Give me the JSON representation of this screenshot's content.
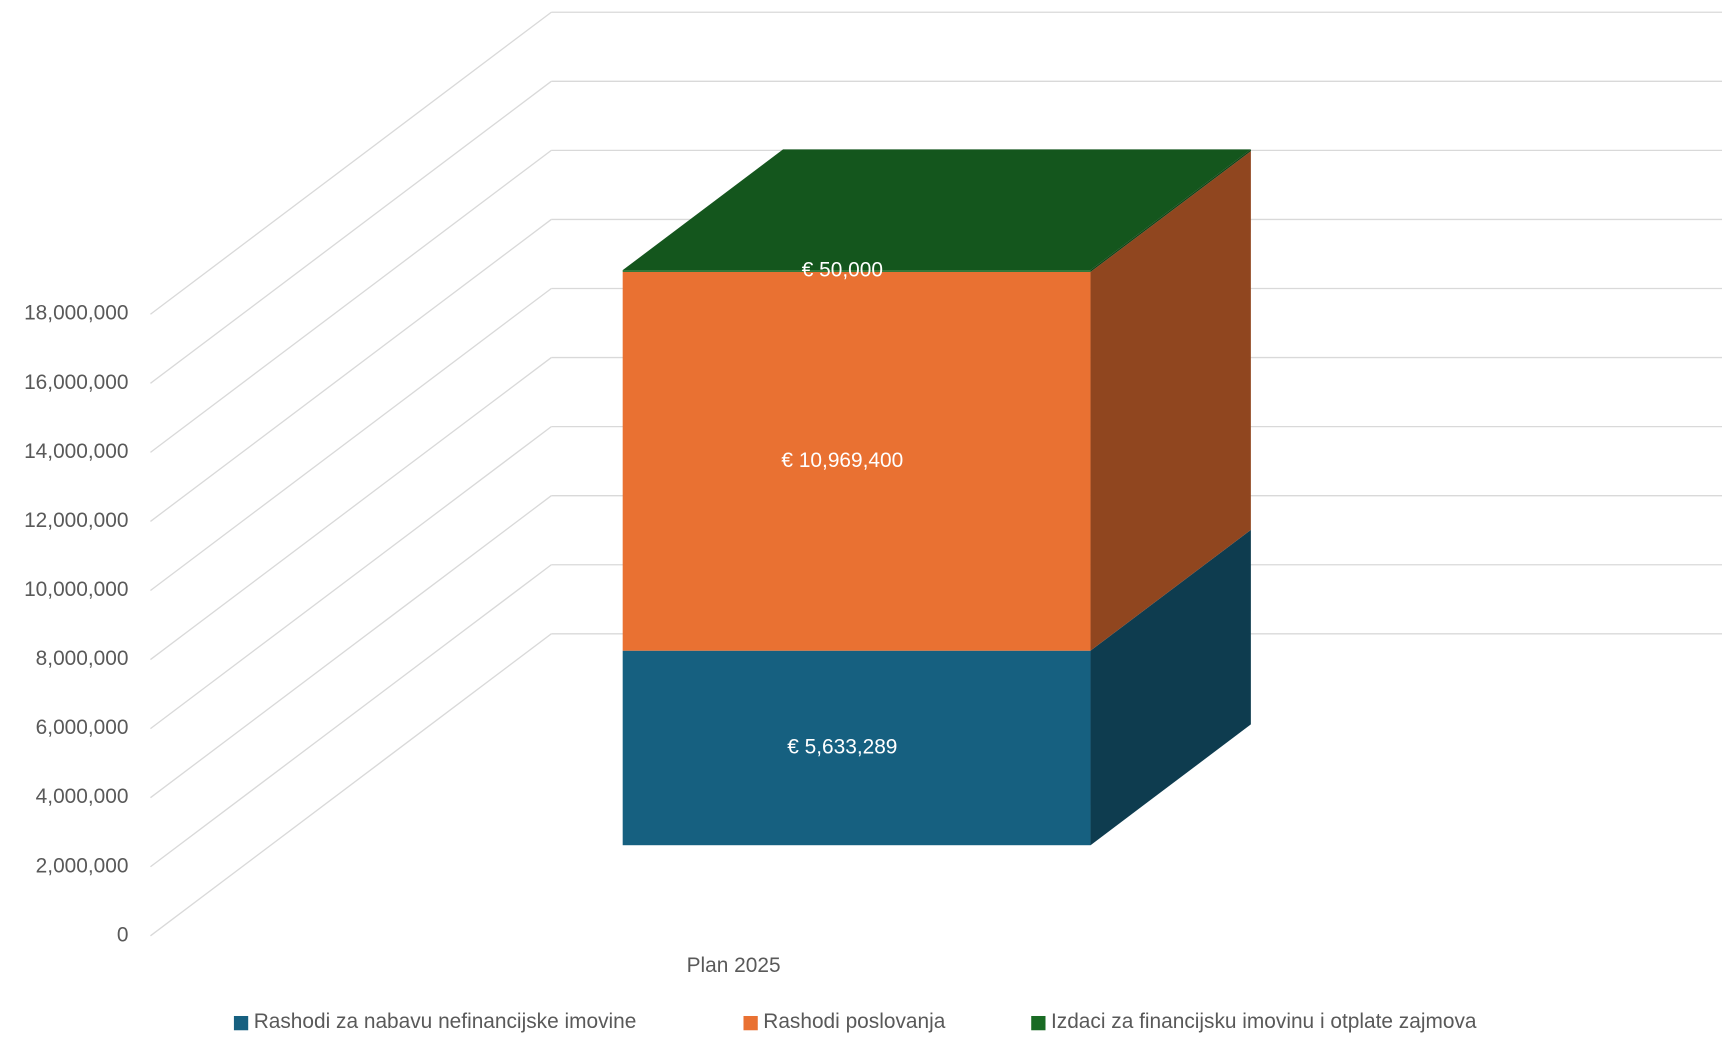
{
  "chart_data": {
    "type": "bar3d_stacked",
    "categories": [
      "Plan 2025"
    ],
    "series": [
      {
        "name": "Rashodi za nabavu nefinancijske imovine",
        "color": "#166080",
        "values": [
          5633289
        ],
        "value_labels": [
          "€ 5,633,289"
        ]
      },
      {
        "name": "Rashodi poslovanja",
        "color": "#E97132",
        "values": [
          10969400
        ],
        "value_labels": [
          "€ 10,969,400"
        ]
      },
      {
        "name": "Izdaci za financijsku imovinu i otplate zajmova",
        "color": "#196B24",
        "values": [
          50000
        ],
        "value_labels": [
          "€ 50,000"
        ]
      }
    ],
    "ylim": [
      0,
      18000000
    ],
    "yticks": [
      {
        "value": 0,
        "label": "0"
      },
      {
        "value": 2000000,
        "label": "2,000,000"
      },
      {
        "value": 4000000,
        "label": "4,000,000"
      },
      {
        "value": 6000000,
        "label": "6,000,000"
      },
      {
        "value": 8000000,
        "label": "8,000,000"
      },
      {
        "value": 10000000,
        "label": "10,000,000"
      },
      {
        "value": 12000000,
        "label": "12,000,000"
      },
      {
        "value": 14000000,
        "label": "14,000,000"
      },
      {
        "value": 16000000,
        "label": "16,000,000"
      },
      {
        "value": 18000000,
        "label": "18,000,000"
      }
    ],
    "grid": true,
    "legend": "bottom"
  }
}
